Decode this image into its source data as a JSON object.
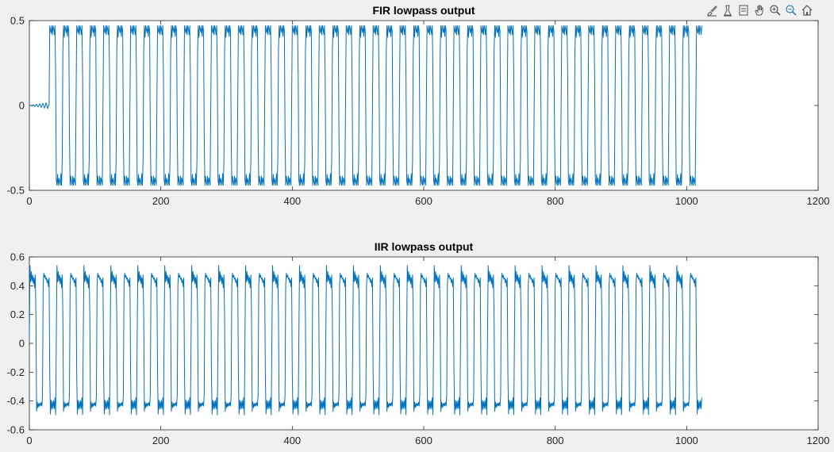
{
  "toolbar": {
    "icons": [
      "brush-icon",
      "data-tips-icon",
      "restore-view-icon",
      "pan-icon",
      "zoom-in-icon",
      "zoom-out-icon",
      "home-icon"
    ]
  },
  "colors": {
    "figure_bg": "#f0f0f0",
    "axes_bg": "#ffffff",
    "line": "#0072bd",
    "axis": "#262626",
    "tick_text": "#262626"
  },
  "chart_data": [
    {
      "type": "line",
      "title": "FIR lowpass output",
      "xlabel": "",
      "ylabel": "",
      "xlim": [
        0,
        1200
      ],
      "ylim": [
        -0.5,
        0.5
      ],
      "xticks": [
        0,
        200,
        400,
        600,
        800,
        1000,
        1200
      ],
      "yticks": [
        -0.5,
        0,
        0.5
      ],
      "xtick_labels": [
        "0",
        "200",
        "400",
        "600",
        "800",
        "1000",
        "1200"
      ],
      "ytick_labels": [
        "-0.5",
        "0",
        "0.5"
      ],
      "grid": false,
      "series": [
        {
          "n_samples": 1024,
          "delay": 30,
          "period": 20.5,
          "amplitude": 0.45,
          "ripple": 0.05,
          "initial_noise": 0.02
        }
      ]
    },
    {
      "type": "line",
      "title": "IIR lowpass output",
      "xlabel": "",
      "ylabel": "",
      "xlim": [
        0,
        1200
      ],
      "ylim": [
        -0.6,
        0.6
      ],
      "xticks": [
        0,
        200,
        400,
        600,
        800,
        1000,
        1200
      ],
      "yticks": [
        -0.6,
        -0.4,
        -0.2,
        0,
        0.2,
        0.4,
        0.6
      ],
      "xtick_labels": [
        "0",
        "200",
        "400",
        "600",
        "800",
        "1000",
        "1200"
      ],
      "ytick_labels": [
        "-0.6",
        "-0.4",
        "-0.2",
        "0",
        "0.2",
        "0.4",
        "0.6"
      ],
      "grid": false,
      "series": [
        {
          "n_samples": 1024,
          "delay": 0,
          "period": 20.5,
          "amplitude": 0.42,
          "overshoot": 0.12,
          "ripple": 0.06
        }
      ]
    }
  ]
}
